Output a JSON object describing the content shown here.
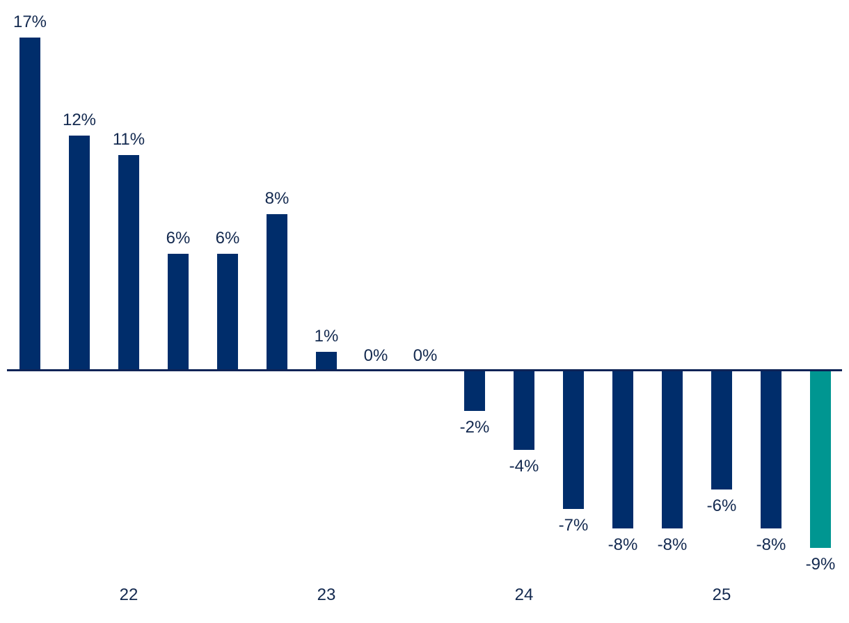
{
  "chart_data": {
    "type": "bar",
    "title": "",
    "xlabel": "",
    "ylabel": "",
    "values": [
      17,
      12,
      11,
      6,
      6,
      8,
      1,
      0,
      0,
      -2,
      -4,
      -7,
      -8,
      -8,
      -6,
      -8,
      -9
    ],
    "labels": [
      "17%",
      "12%",
      "11%",
      "6%",
      "6%",
      "8%",
      "1%",
      "0%",
      "0%",
      "-2%",
      "-4%",
      "-7%",
      "-8%",
      "-8%",
      "-6%",
      "-8%",
      "-9%"
    ],
    "x_ticks": [
      {
        "label": "22",
        "bar_index": 2
      },
      {
        "label": "23",
        "bar_index": 6
      },
      {
        "label": "24",
        "bar_index": 10
      },
      {
        "label": "25",
        "bar_index": 14
      }
    ],
    "highlight_index": 16,
    "ylim": [
      -10,
      18
    ],
    "grid": false,
    "legend": null,
    "colors": {
      "bar": "#002d6b",
      "highlight_bar": "#009691",
      "axis_line": "#0e2356",
      "label_text": "#13294f"
    }
  }
}
